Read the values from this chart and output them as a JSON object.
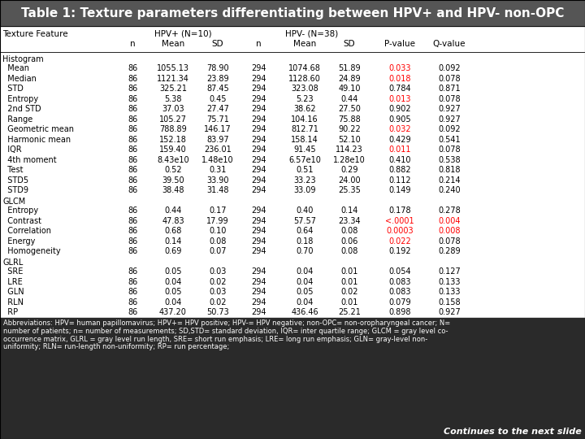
{
  "title": "Table 1: Texture parameters differentiating between HPV+ and HPV- non-OPC",
  "sections": [
    {
      "name": "Histogram",
      "rows": [
        {
          "feature": "  Mean",
          "n1": "86",
          "m1": "1055.13",
          "sd1": "78.90",
          "n2": "294",
          "m2": "1074.68",
          "sd2": "51.89",
          "pval": "0.033",
          "qval": "0.092",
          "pred": true,
          "qred": false
        },
        {
          "feature": "  Median",
          "n1": "86",
          "m1": "1121.34",
          "sd1": "23.89",
          "n2": "294",
          "m2": "1128.60",
          "sd2": "24.89",
          "pval": "0.018",
          "qval": "0.078",
          "pred": true,
          "qred": false
        },
        {
          "feature": "  STD",
          "n1": "86",
          "m1": "325.21",
          "sd1": "87.45",
          "n2": "294",
          "m2": "323.08",
          "sd2": "49.10",
          "pval": "0.784",
          "qval": "0.871",
          "pred": false,
          "qred": false
        },
        {
          "feature": "  Entropy",
          "n1": "86",
          "m1": "5.38",
          "sd1": "0.45",
          "n2": "294",
          "m2": "5.23",
          "sd2": "0.44",
          "pval": "0.013",
          "qval": "0.078",
          "pred": true,
          "qred": false
        },
        {
          "feature": "  2nd STD",
          "n1": "86",
          "m1": "37.03",
          "sd1": "27.47",
          "n2": "294",
          "m2": "38.62",
          "sd2": "27.50",
          "pval": "0.902",
          "qval": "0.927",
          "pred": false,
          "qred": false
        },
        {
          "feature": "  Range",
          "n1": "86",
          "m1": "105.27",
          "sd1": "75.71",
          "n2": "294",
          "m2": "104.16",
          "sd2": "75.88",
          "pval": "0.905",
          "qval": "0.927",
          "pred": false,
          "qred": false
        },
        {
          "feature": "  Geometric mean",
          "n1": "86",
          "m1": "788.89",
          "sd1": "146.17",
          "n2": "294",
          "m2": "812.71",
          "sd2": "90.22",
          "pval": "0.032",
          "qval": "0.092",
          "pred": true,
          "qred": false
        },
        {
          "feature": "  Harmonic mean",
          "n1": "86",
          "m1": "152.18",
          "sd1": "83.97",
          "n2": "294",
          "m2": "158.14",
          "sd2": "52.10",
          "pval": "0.429",
          "qval": "0.541",
          "pred": false,
          "qred": false
        },
        {
          "feature": "  IQR",
          "n1": "86",
          "m1": "159.40",
          "sd1": "236.01",
          "n2": "294",
          "m2": "91.45",
          "sd2": "114.23",
          "pval": "0.011",
          "qval": "0.078",
          "pred": true,
          "qred": false
        },
        {
          "feature": "  4th moment",
          "n1": "86",
          "m1": "8.43e10",
          "sd1": "1.48e10",
          "n2": "294",
          "m2": "6.57e10",
          "sd2": "1.28e10",
          "pval": "0.410",
          "qval": "0.538",
          "pred": false,
          "qred": false
        },
        {
          "feature": "  Test",
          "n1": "86",
          "m1": "0.52",
          "sd1": "0.31",
          "n2": "294",
          "m2": "0.51",
          "sd2": "0.29",
          "pval": "0.882",
          "qval": "0.818",
          "pred": false,
          "qred": false
        },
        {
          "feature": "  STD5",
          "n1": "86",
          "m1": "39.50",
          "sd1": "33.90",
          "n2": "294",
          "m2": "33.23",
          "sd2": "24.00",
          "pval": "0.112",
          "qval": "0.214",
          "pred": false,
          "qred": false
        },
        {
          "feature": "  STD9",
          "n1": "86",
          "m1": "38.48",
          "sd1": "31.48",
          "n2": "294",
          "m2": "33.09",
          "sd2": "25.35",
          "pval": "0.149",
          "qval": "0.240",
          "pred": false,
          "qred": false
        }
      ]
    },
    {
      "name": "GLCM",
      "rows": [
        {
          "feature": "  Entropy",
          "n1": "86",
          "m1": "0.44",
          "sd1": "0.17",
          "n2": "294",
          "m2": "0.40",
          "sd2": "0.14",
          "pval": "0.178",
          "qval": "0.278",
          "pred": false,
          "qred": false
        },
        {
          "feature": "  Contrast",
          "n1": "86",
          "m1": "47.83",
          "sd1": "17.99",
          "n2": "294",
          "m2": "57.57",
          "sd2": "23.34",
          "pval": "<.0001",
          "qval": "0.004",
          "pred": true,
          "qred": true
        },
        {
          "feature": "  Correlation",
          "n1": "86",
          "m1": "0.68",
          "sd1": "0.10",
          "n2": "294",
          "m2": "0.64",
          "sd2": "0.08",
          "pval": "0.0003",
          "qval": "0.008",
          "pred": true,
          "qred": true
        },
        {
          "feature": "  Energy",
          "n1": "86",
          "m1": "0.14",
          "sd1": "0.08",
          "n2": "294",
          "m2": "0.18",
          "sd2": "0.06",
          "pval": "0.022",
          "qval": "0.078",
          "pred": true,
          "qred": false
        },
        {
          "feature": "  Homogeneity",
          "n1": "86",
          "m1": "0.69",
          "sd1": "0.07",
          "n2": "294",
          "m2": "0.70",
          "sd2": "0.08",
          "pval": "0.192",
          "qval": "0.289",
          "pred": false,
          "qred": false
        }
      ]
    },
    {
      "name": "GLRL",
      "rows": [
        {
          "feature": "  SRE",
          "n1": "86",
          "m1": "0.05",
          "sd1": "0.03",
          "n2": "294",
          "m2": "0.04",
          "sd2": "0.01",
          "pval": "0.054",
          "qval": "0.127",
          "pred": false,
          "qred": false
        },
        {
          "feature": "  LRE",
          "n1": "86",
          "m1": "0.04",
          "sd1": "0.02",
          "n2": "294",
          "m2": "0.04",
          "sd2": "0.01",
          "pval": "0.083",
          "qval": "0.133",
          "pred": false,
          "qred": false
        },
        {
          "feature": "  GLN",
          "n1": "86",
          "m1": "0.05",
          "sd1": "0.03",
          "n2": "294",
          "m2": "0.05",
          "sd2": "0.02",
          "pval": "0.083",
          "qval": "0.133",
          "pred": false,
          "qred": false
        },
        {
          "feature": "  RLN",
          "n1": "86",
          "m1": "0.04",
          "sd1": "0.02",
          "n2": "294",
          "m2": "0.04",
          "sd2": "0.01",
          "pval": "0.079",
          "qval": "0.158",
          "pred": false,
          "qred": false
        },
        {
          "feature": "  RP",
          "n1": "86",
          "m1": "437.20",
          "sd1": "50.73",
          "n2": "294",
          "m2": "436.46",
          "sd2": "25.21",
          "pval": "0.898",
          "qval": "0.927",
          "pred": false,
          "qred": false
        }
      ]
    }
  ],
  "abbr_line1": "Abbreviations: HPV= human papillomavirus; HPV+= HPV positive; HPV-= HPV negative; non-OPC= non-oropharyngeal cancer; N=",
  "abbr_line2": "number of patients; n= number of measurements; SD,STD= standard deviation, IQR= inter quartile range; GLCM = gray level co-",
  "abbr_line3": "occurrence matrix, GLRL = gray level run length, SRE= short run emphasis; LRE= long run emphasis; GLN= gray-level non-",
  "abbr_line4": "uniformity; RLN= run-length non-uniformity; RP= run percentage;",
  "continues": "Continues to the next slide",
  "red_color": "#ff0000",
  "black_color": "#000000",
  "title_bg": "#555555",
  "footer_bg": "#2a2a2a",
  "white": "#ffffff"
}
